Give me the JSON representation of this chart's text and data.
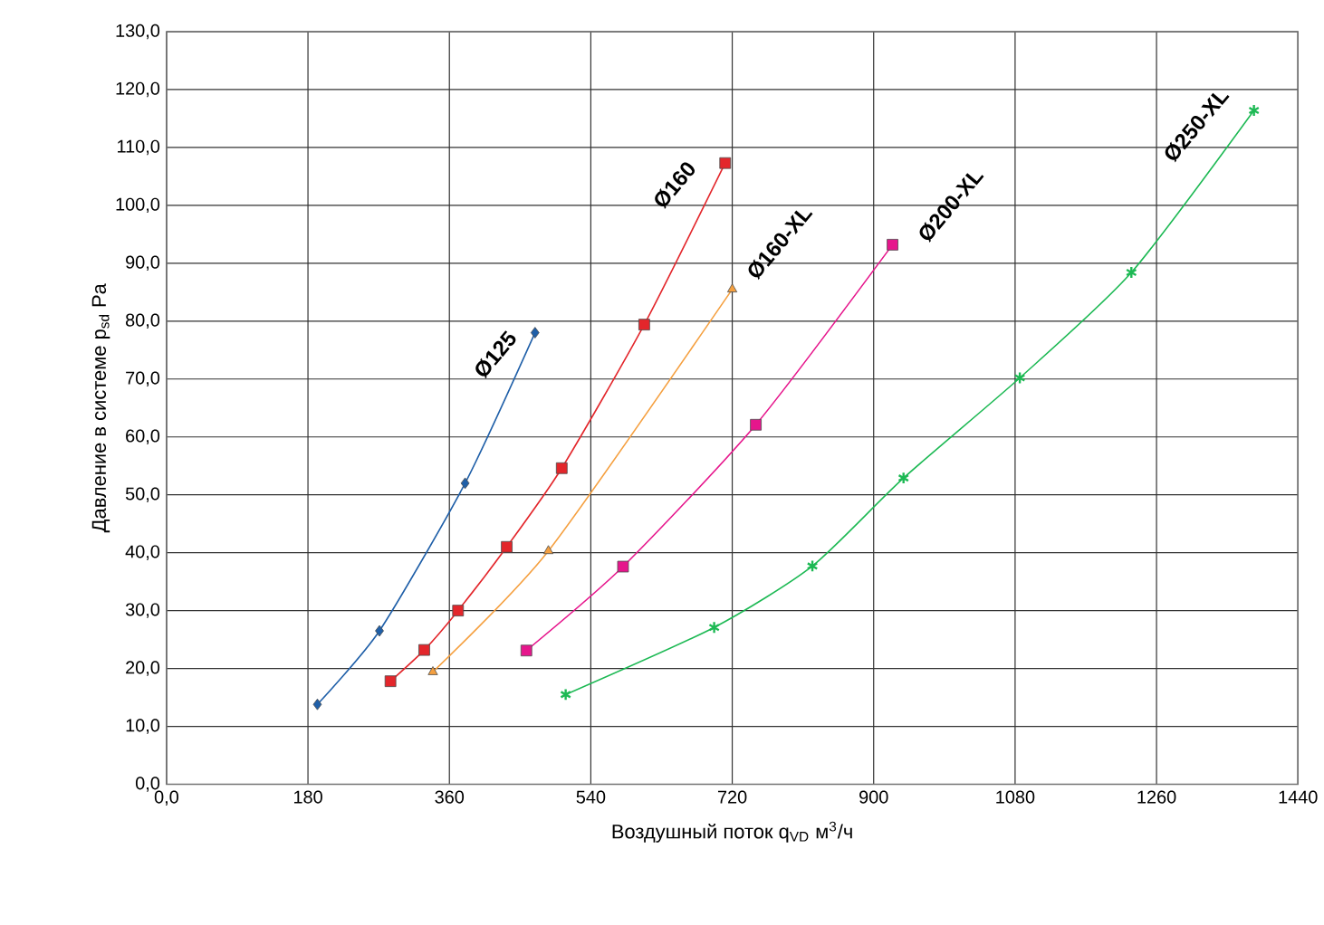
{
  "chart_data": {
    "type": "line",
    "xlabel": "Воздушный поток q$_{VD}$ м$^{3}$/ч",
    "ylabel": "Давление в системе p$_{sd}$ Pa",
    "xlim": [
      0,
      1440
    ],
    "xticks": [
      {
        "value": 0,
        "label": "0,0"
      },
      180,
      360,
      540,
      720,
      900,
      1080,
      1260,
      1440
    ],
    "ylim": [
      0,
      130
    ],
    "yticks": [
      {
        "value": 0,
        "label": "0,0"
      },
      {
        "value": 10,
        "label": "10,0"
      },
      {
        "value": 20,
        "label": "20,0"
      },
      {
        "value": 30,
        "label": "30,0"
      },
      {
        "value": 40,
        "label": "40,0"
      },
      {
        "value": 50,
        "label": "50,0"
      },
      {
        "value": 60,
        "label": "60,0"
      },
      {
        "value": 70,
        "label": "70,0"
      },
      {
        "value": 80,
        "label": "80,0"
      },
      {
        "value": 90,
        "label": "90,0"
      },
      {
        "value": 100,
        "label": "100,0"
      },
      {
        "value": 110,
        "label": "110,0"
      },
      {
        "value": 120,
        "label": "120,0"
      },
      {
        "value": 130,
        "label": "130,0"
      }
    ],
    "grid": true,
    "series": [
      {
        "name": "Ø125",
        "color": "#1f5fa8",
        "marker": "diamond",
        "x": [
          192,
          271,
          380,
          469
        ],
        "values": [
          13.8,
          26.5,
          52,
          78
        ]
      },
      {
        "name": "Ø160",
        "color": "#e3262b",
        "marker": "square",
        "x": [
          285,
          328,
          371,
          433,
          503,
          608,
          711
        ],
        "values": [
          17.8,
          23.2,
          30,
          41,
          54.6,
          79.4,
          107.3
        ]
      },
      {
        "name": "Ø160-XL",
        "color": "#f5a040",
        "marker": "triangle",
        "x": [
          339,
          486,
          720
        ],
        "values": [
          19.4,
          40.3,
          85.5
        ]
      },
      {
        "name": "Ø200-XL",
        "color": "#e6168c",
        "marker": "square",
        "x": [
          458,
          581,
          750,
          924
        ],
        "values": [
          23.1,
          37.6,
          62.1,
          93.2
        ]
      },
      {
        "name": "Ø250-XL",
        "color": "#1db954",
        "marker": "cross",
        "x": [
          508,
          697,
          822,
          938,
          1086,
          1228,
          1384
        ],
        "values": [
          15.5,
          27.1,
          37.7,
          52.9,
          70.2,
          88.4,
          116.4
        ]
      }
    ]
  }
}
